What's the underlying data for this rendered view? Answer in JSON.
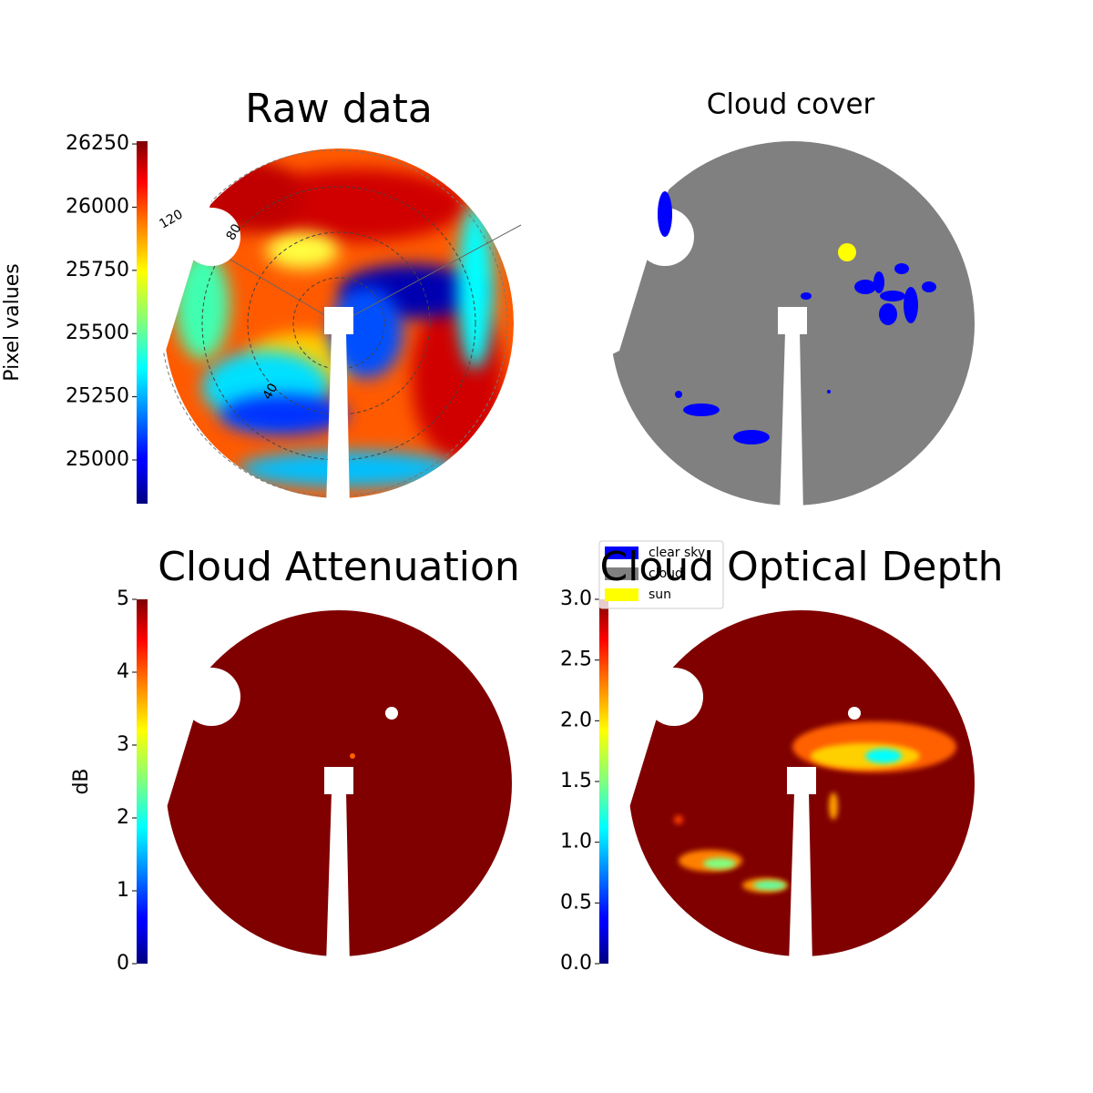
{
  "chart_data": [
    {
      "type": "image",
      "title": "Raw data",
      "colormap": "jet",
      "colorbar_label": "Pixel values",
      "ylim": [
        24827,
        26261
      ],
      "yticks": [
        25000,
        25250,
        25500,
        25750,
        26000,
        26250
      ],
      "annotations": [
        "120",
        "80",
        "40"
      ]
    },
    {
      "type": "image",
      "title": "Cloud cover",
      "categories": [
        "clear sky",
        "cloud",
        "sun"
      ],
      "colors": [
        "#0000ff",
        "#808080",
        "#ffff00"
      ]
    },
    {
      "type": "image",
      "title": "Cloud Attenuation",
      "colormap": "jet",
      "colorbar_label": "dB",
      "ylim": [
        0,
        5
      ],
      "yticks": [
        0,
        1,
        2,
        3,
        4,
        5
      ]
    },
    {
      "type": "image",
      "title": "Cloud Optical Depth",
      "colormap": "jet",
      "ylim": [
        0,
        3
      ],
      "yticks": [
        {
          "value": 0,
          "label": "0.0"
        },
        0.5,
        {
          "value": 1,
          "label": "1.0"
        },
        1.5,
        {
          "value": 2,
          "label": "2.0"
        },
        2.5,
        {
          "value": 3,
          "label": "3.0"
        }
      ]
    }
  ]
}
